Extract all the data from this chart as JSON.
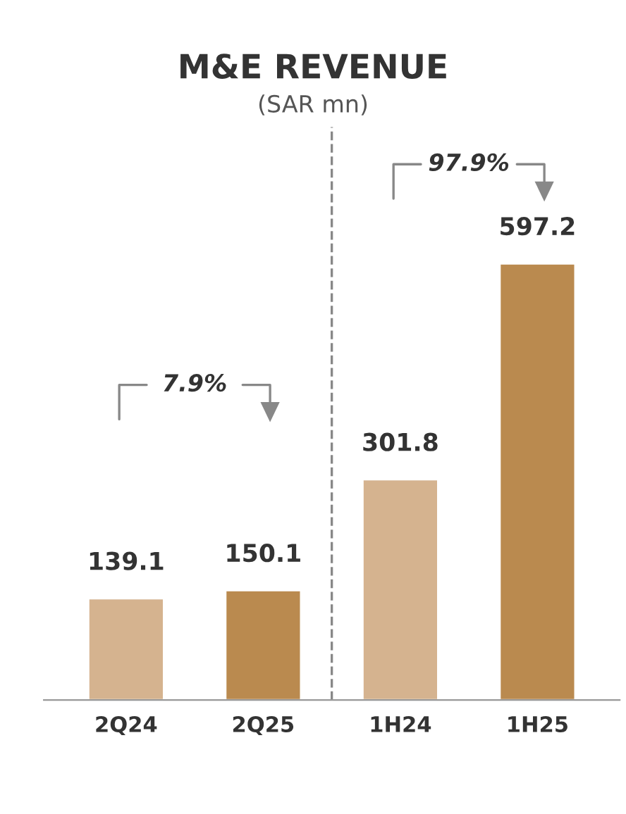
{
  "chart_data": {
    "type": "bar",
    "title": "M&E REVENUE",
    "subtitle": "(SAR mn)",
    "categories": [
      "2Q24",
      "2Q25",
      "1H24",
      "1H25"
    ],
    "values": [
      139.1,
      150.1,
      301.8,
      597.2
    ],
    "colors": [
      "#d5b38f",
      "#ba8a4f",
      "#d5b38f",
      "#ba8a4f"
    ],
    "data_labels": true,
    "annotations": [
      "7.9%",
      "97.9%"
    ],
    "grid": false,
    "legend": false
  }
}
